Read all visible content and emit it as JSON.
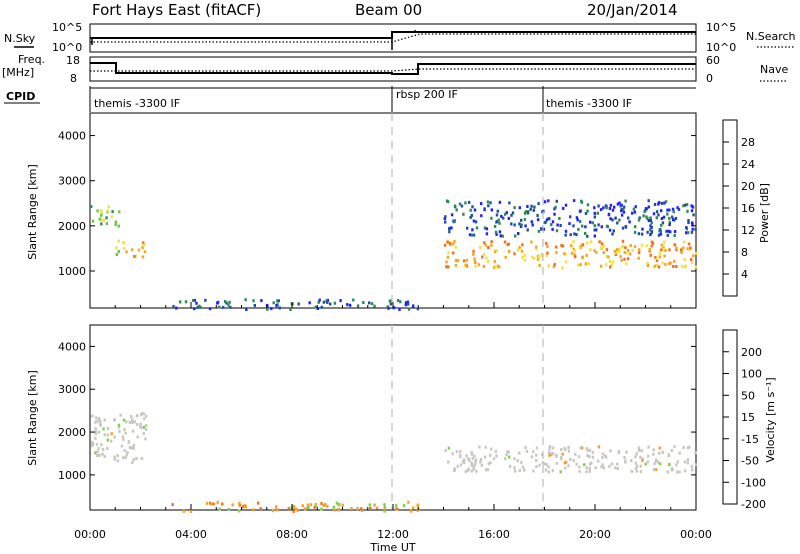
{
  "header": {
    "station": "Fort Hays East (fitACF)",
    "beam": "Beam 00",
    "date": "20/Jan/2014"
  },
  "summary_labels": {
    "nsky": "N.Sky",
    "nsky_ticks": [
      "10^5",
      "10^0"
    ],
    "nsearch": "N.Search",
    "nsearch_ticks": [
      "10^5",
      "10^0"
    ],
    "freq": "Freq.",
    "freq_unit": "[MHz]",
    "freq_ticks": [
      "18",
      "8"
    ],
    "nave": "Nave",
    "nave_ticks": [
      "60",
      "0"
    ],
    "cpid": "CPID"
  },
  "cpid_modes": [
    {
      "label": "themis -3300 IF",
      "start_hour": 0
    },
    {
      "label": "rbsp 200 IF",
      "start_hour": 12
    },
    {
      "label": "themis -3300 IF",
      "start_hour": 18
    }
  ],
  "x_axis": {
    "label": "Time UT",
    "ticks": [
      "00:00",
      "04:00",
      "08:00",
      "12:00",
      "16:00",
      "20:00",
      "00:00"
    ],
    "range_hours": [
      0,
      24
    ]
  },
  "chart_data": [
    {
      "type": "heatmap",
      "panel": "power",
      "ylabel": "Slant Range [km]",
      "ylim": [
        180,
        4500
      ],
      "y_ticks": [
        "1000",
        "2000",
        "3000",
        "4000"
      ],
      "colorbar": {
        "label": "Power [dB]",
        "ticks": [
          "28",
          "24",
          "20",
          "16",
          "12",
          "8",
          "4"
        ],
        "colors": [
          "#2020ff",
          "#1f4fa0",
          "#2e8a55",
          "#6fc24a",
          "#f2e23c",
          "#f5a623",
          "#f07020",
          "#e02020"
        ]
      },
      "regions": [
        {
          "name": "morning-cluster",
          "t_range": [
            0.0,
            1.2
          ],
          "range_km": [
            2000,
            2500
          ],
          "power_db": 14
        },
        {
          "name": "morning-lower",
          "t_range": [
            1.0,
            2.2
          ],
          "range_km": [
            1300,
            1700
          ],
          "power_db": 20
        },
        {
          "name": "ground-scatter-low",
          "t_range": [
            3.0,
            13.0
          ],
          "range_km": [
            180,
            400
          ],
          "power_db": 6
        },
        {
          "name": "main-band",
          "t_range": [
            14.0,
            24.0
          ],
          "range_km": [
            1100,
            1700
          ],
          "power_db": 22
        },
        {
          "name": "upper-scatter",
          "t_range": [
            14.0,
            24.0
          ],
          "range_km": [
            1800,
            2600
          ],
          "power_db": 5
        }
      ]
    },
    {
      "type": "heatmap",
      "panel": "velocity",
      "ylabel": "Slant Range [km]",
      "ylim": [
        180,
        4500
      ],
      "y_ticks": [
        "1000",
        "2000",
        "3000",
        "4000"
      ],
      "colorbar": {
        "label": "Velocity [m s⁻¹]",
        "ticks": [
          "200",
          "100",
          "50",
          "15",
          "-15",
          "-50",
          "-100",
          "-200"
        ],
        "colors": [
          "#1a2fa0",
          "#3a66c0",
          "#2e8a55",
          "#7fd050",
          "#c8c8c0",
          "#f2a030",
          "#f07020",
          "#e02020"
        ]
      },
      "regions": [
        {
          "name": "morning-grey",
          "t_range": [
            0.0,
            2.2
          ],
          "range_km": [
            1300,
            2500
          ],
          "velocity": 0
        },
        {
          "name": "low-band-orange",
          "t_range": [
            3.0,
            13.0
          ],
          "range_km": [
            180,
            400
          ],
          "velocity": -60
        },
        {
          "name": "main-band-grey",
          "t_range": [
            14.0,
            24.0
          ],
          "range_km": [
            1100,
            1700
          ],
          "velocity": 0
        }
      ]
    }
  ]
}
